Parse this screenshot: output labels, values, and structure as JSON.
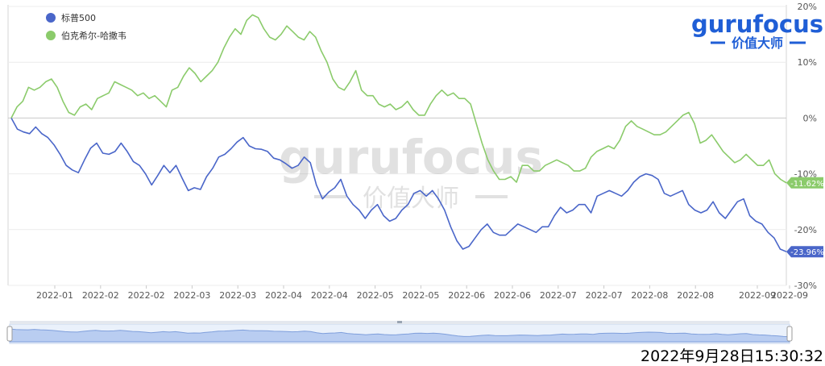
{
  "legend": [
    {
      "name": "标普500",
      "color": "#4a66c9"
    },
    {
      "name": "伯克希尔-哈撒韦",
      "color": "#8bcb6b"
    }
  ],
  "logo": {
    "word": "gurufocus",
    "sub": "价值大师",
    "word_color": "#1f5ed6",
    "accent_color": "#f2a900"
  },
  "watermark": {
    "word": "gurufocus",
    "sub": "价值大师"
  },
  "end_labels": {
    "series1": "-23.96%",
    "series2": "-11.62%"
  },
  "timestamp": "2022年9月28日15:30:32",
  "chart_data": {
    "type": "line",
    "y_unit": "%",
    "ylim": [
      -30,
      20
    ],
    "y_ticks": [
      "20%",
      "10%",
      "0%",
      "-10%",
      "-20%",
      "-30%"
    ],
    "x_tick_labels": [
      "2022-01",
      "2022-02",
      "2022-02",
      "2022-03",
      "2022-03",
      "2022-04",
      "2022-04",
      "2022-05",
      "2022-05",
      "2022-06",
      "2022-06",
      "2022-07",
      "2022-07",
      "2022-08",
      "2022-08",
      "2022-09",
      "2022-09"
    ],
    "grid": true,
    "legend_position": "top-left",
    "series": [
      {
        "name": "标普500",
        "color": "#4a66c9",
        "values": [
          0,
          -2,
          -2.5,
          -2.8,
          -1.6,
          -2.8,
          -3.5,
          -4.8,
          -6.5,
          -8.5,
          -9.3,
          -9.8,
          -7.5,
          -5.4,
          -4.5,
          -6.3,
          -6.5,
          -6.0,
          -4.5,
          -6.0,
          -7.8,
          -8.5,
          -10.0,
          -12.0,
          -10.3,
          -8.5,
          -9.8,
          -8.5,
          -10.8,
          -13.0,
          -12.5,
          -12.8,
          -10.5,
          -9.0,
          -7.0,
          -6.5,
          -5.5,
          -4.3,
          -3.5,
          -5.0,
          -5.5,
          -5.6,
          -6.0,
          -7.2,
          -7.5,
          -8.2,
          -9.0,
          -8.5,
          -7.0,
          -8.0,
          -12.0,
          -14.5,
          -13.3,
          -12.5,
          -11.0,
          -14.0,
          -15.5,
          -16.5,
          -18.0,
          -16.5,
          -15.5,
          -17.5,
          -18.5,
          -18.0,
          -16.5,
          -15.5,
          -13.5,
          -13.0,
          -14.0,
          -13.0,
          -14.5,
          -16.5,
          -19.5,
          -22.0,
          -23.5,
          -23.0,
          -21.5,
          -20.0,
          -19.0,
          -20.5,
          -21.0,
          -21.0,
          -20.0,
          -19.0,
          -19.5,
          -20.0,
          -20.5,
          -19.5,
          -19.5,
          -17.5,
          -16.0,
          -17.0,
          -16.5,
          -15.5,
          -15.5,
          -17.0,
          -14.0,
          -13.5,
          -13.0,
          -13.5,
          -14.0,
          -13.0,
          -11.5,
          -10.5,
          -10.0,
          -10.3,
          -11.0,
          -13.5,
          -14.0,
          -13.5,
          -13.0,
          -15.5,
          -16.5,
          -17.0,
          -16.5,
          -15.0,
          -17.0,
          -18.0,
          -16.5,
          -15.0,
          -14.5,
          -17.5,
          -18.5,
          -19.0,
          -20.5,
          -21.5,
          -23.5,
          -23.96
        ]
      },
      {
        "name": "伯克希尔-哈撒韦",
        "color": "#8bcb6b",
        "values": [
          0,
          2.0,
          3.0,
          5.5,
          5.0,
          5.5,
          6.5,
          7.0,
          5.5,
          3.0,
          1.0,
          0.5,
          2.0,
          2.5,
          1.5,
          3.5,
          4.0,
          4.5,
          6.5,
          6.0,
          5.5,
          5.0,
          4.0,
          4.5,
          3.5,
          4.0,
          3.0,
          2.0,
          5.0,
          5.5,
          7.5,
          9.0,
          8.0,
          6.5,
          7.5,
          8.5,
          10.0,
          12.5,
          14.5,
          16.0,
          15.0,
          17.5,
          18.5,
          18.0,
          16.0,
          14.5,
          14.0,
          15.0,
          16.5,
          15.5,
          14.5,
          14.0,
          15.5,
          14.5,
          12.0,
          10.0,
          7.0,
          5.5,
          5.0,
          6.5,
          8.5,
          5.0,
          4.0,
          4.0,
          2.5,
          2.0,
          2.5,
          1.5,
          2.0,
          3.0,
          1.5,
          0.5,
          0.5,
          2.5,
          4.0,
          5.0,
          4.0,
          4.5,
          3.5,
          3.5,
          2.5,
          -1.0,
          -4.5,
          -7.5,
          -9.5,
          -11.0,
          -11.0,
          -10.5,
          -11.5,
          -8.5,
          -8.5,
          -9.5,
          -9.5,
          -8.5,
          -8.0,
          -7.5,
          -8.0,
          -8.5,
          -9.5,
          -9.5,
          -9.0,
          -7.0,
          -6.0,
          -5.5,
          -5.0,
          -5.5,
          -4.0,
          -1.5,
          -0.5,
          -1.5,
          -2.0,
          -2.5,
          -3.0,
          -3.0,
          -2.5,
          -1.5,
          -0.5,
          0.5,
          1.0,
          -1.0,
          -4.5,
          -4.0,
          -3.0,
          -4.5,
          -6.0,
          -7.0,
          -8.0,
          -7.5,
          -6.5,
          -7.5,
          -8.5,
          -8.5,
          -7.5,
          -10.0,
          -11.0,
          -11.62
        ]
      }
    ]
  }
}
